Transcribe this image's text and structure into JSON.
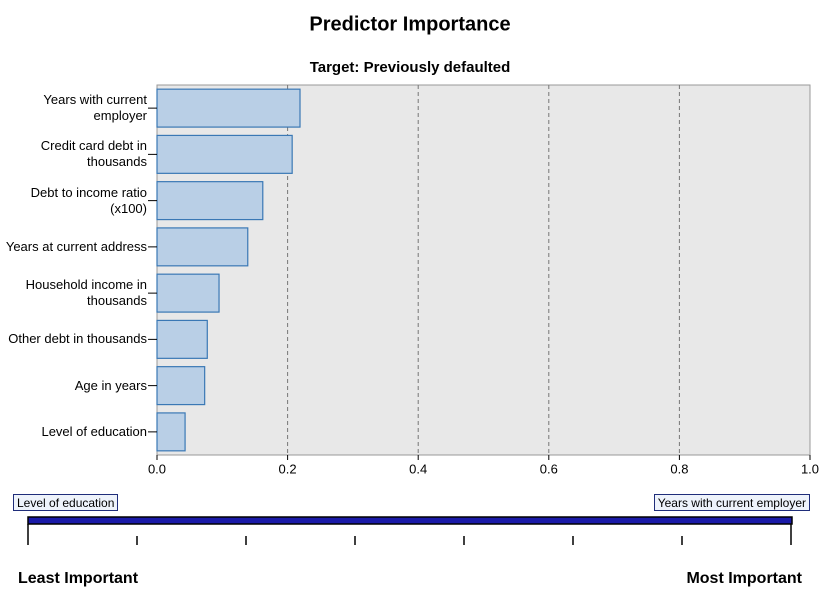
{
  "chart_data": {
    "type": "bar",
    "orientation": "horizontal",
    "title": "Predictor Importance",
    "subtitle": "Target: Previously defaulted",
    "categories": [
      "Years with current employer",
      "Credit card debt in thousands",
      "Debt to income ratio (x100)",
      "Years at current address",
      "Household income in thousands",
      "Other debt in thousands",
      "Age in years",
      "Level of education"
    ],
    "values": [
      0.219,
      0.207,
      0.162,
      0.139,
      0.095,
      0.077,
      0.073,
      0.043
    ],
    "color": "#b9cfe6",
    "edge_color": "#3a78b5",
    "xlim": [
      0,
      1
    ],
    "xticks": [
      {
        "value": 0,
        "label": "0.0"
      },
      0.2,
      0.4,
      0.6,
      0.8,
      {
        "value": 1,
        "label": "1.0"
      }
    ],
    "grid": true
  },
  "importance_scale": {
    "min_predictor": "Level of education",
    "max_predictor": "Years with current employer",
    "least": "Least Important",
    "most": "Most Important"
  }
}
